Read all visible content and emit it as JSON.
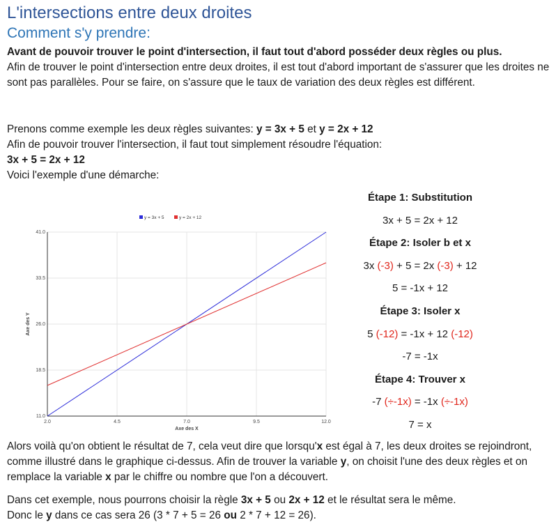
{
  "title": "L'intersections entre deux droites",
  "subtitle": "Comment s'y prendre:",
  "intro_bold": "Avant de pouvoir trouver le point d'intersection, il faut tout d'abord posséder deux règles ou plus.",
  "intro_text": "Afin de trouver le point d'intersection entre deux droites, il est tout d'abord important de s'assurer que les droites ne sont pas parallèles. Pour se faire, on s'assure que le taux de variation des deux règles est différent.",
  "example": {
    "prefix": "Prenons comme exemple les deux règles suivantes: ",
    "rule1": "y = 3x + 5",
    "mid": " et ",
    "rule2": "y = 2x + 12",
    "line2": "Afin de pouvoir trouver l'intersection, il faut tout simplement résoudre l'équation:",
    "equation": "3x + 5 = 2x + 12",
    "line4": "Voici l'exemple d'une démarche:"
  },
  "steps": {
    "s1_title": "Étape 1: Substitution",
    "s1_eq": "3x + 5 = 2x + 12",
    "s2_title": "Étape 2: Isoler b et x",
    "s2_a1": "3x ",
    "s2_a2": "(-3)",
    "s2_a3": " + 5 = 2x ",
    "s2_a4": "(-3)",
    "s2_a5": " + 12",
    "s2_eq2": "5 = -1x + 12",
    "s3_title": "Étape 3: Isoler x",
    "s3_a1": "5 ",
    "s3_a2": "(-12)",
    "s3_a3": " = -1x + 12 ",
    "s3_a4": "(-12)",
    "s3_eq2": "-7 = -1x",
    "s4_title": "Étape 4: Trouver x",
    "s4_a1": "-7 ",
    "s4_a2": "(÷-1x)",
    "s4_a3": " = -1x ",
    "s4_a4": "(÷-1x)",
    "s4_eq2": "7 = x"
  },
  "conclusion": {
    "p1_a": "Alors voilà qu'on obtient le résultat de 7, cela veut dire que lorsqu'",
    "p1_b": "x",
    "p1_c": " est égal à 7, les deux droites se rejoindront, comme illustré dans le graphique ci-dessus. Afin de trouver la variable ",
    "p1_d": "y",
    "p1_e": ", on choisit l'une des deux règles et on remplace la variable ",
    "p1_f": "x",
    "p1_g": " par le chiffre ou nombre que l'on a découvert.",
    "p2_a": "Dans cet exemple, nous pourrons choisir la règle ",
    "p2_b": "3x + 5",
    "p2_c": " ou ",
    "p2_d": "2x + 12",
    "p2_e": " et le résultat sera le même.",
    "p3_a": "Donc le ",
    "p3_b": "y",
    "p3_c": " dans ce cas sera 26 (3 * 7 + 5 = 26 ",
    "p3_d": "ou",
    "p3_e": " 2 * 7 + 12 = 26)."
  },
  "chart_data": {
    "type": "line",
    "xlabel": "Axe des X",
    "ylabel": "Axe des Y",
    "xlim": [
      2.0,
      12.0
    ],
    "ylim": [
      11.0,
      41.0
    ],
    "xticks": [
      "2.0",
      "4.5",
      "7.0",
      "9.5",
      "12.0"
    ],
    "yticks": [
      "11.0",
      "18.5",
      "26.0",
      "33.5",
      "41.0"
    ],
    "grid": true,
    "legend": "top-center",
    "series": [
      {
        "name": "y = 3x + 5",
        "color": "#2b2bd9",
        "x": [
          2,
          12
        ],
        "y": [
          11,
          41
        ]
      },
      {
        "name": "y = 2x + 12",
        "color": "#e03030",
        "x": [
          2,
          12
        ],
        "y": [
          16,
          36
        ]
      }
    ]
  }
}
